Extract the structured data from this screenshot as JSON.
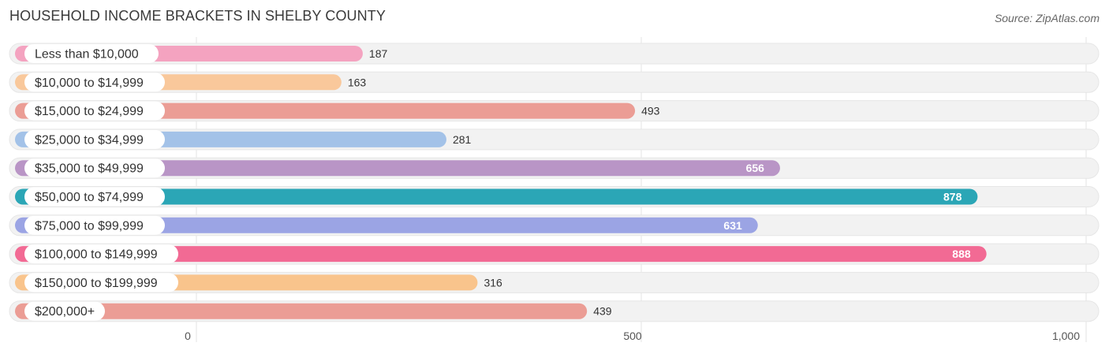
{
  "header": {
    "title": "HOUSEHOLD INCOME BRACKETS IN SHELBY COUNTY",
    "source": "Source: ZipAtlas.com"
  },
  "chart_data": {
    "type": "bar",
    "orientation": "horizontal",
    "categories": [
      "Less than $10,000",
      "$10,000 to $14,999",
      "$15,000 to $24,999",
      "$25,000 to $34,999",
      "$35,000 to $49,999",
      "$50,000 to $74,999",
      "$75,000 to $99,999",
      "$100,000 to $149,999",
      "$150,000 to $199,999",
      "$200,000+"
    ],
    "values": [
      187,
      163,
      493,
      281,
      656,
      878,
      631,
      888,
      316,
      439
    ],
    "value_labels": [
      "187",
      "163",
      "493",
      "281",
      "656",
      "878",
      "631",
      "888",
      "316",
      "439"
    ],
    "colors": [
      "#f4a3c0",
      "#f9c89b",
      "#eb9d95",
      "#a3c2e8",
      "#b995c6",
      "#2ba6b6",
      "#9ba4e4",
      "#f26a94",
      "#f9c48c",
      "#eb9d95"
    ],
    "xlim": [
      0,
      1000
    ],
    "xticks": [
      0,
      500,
      1000
    ],
    "xtick_labels": [
      "0",
      "500",
      "1,000"
    ],
    "grid": true
  }
}
